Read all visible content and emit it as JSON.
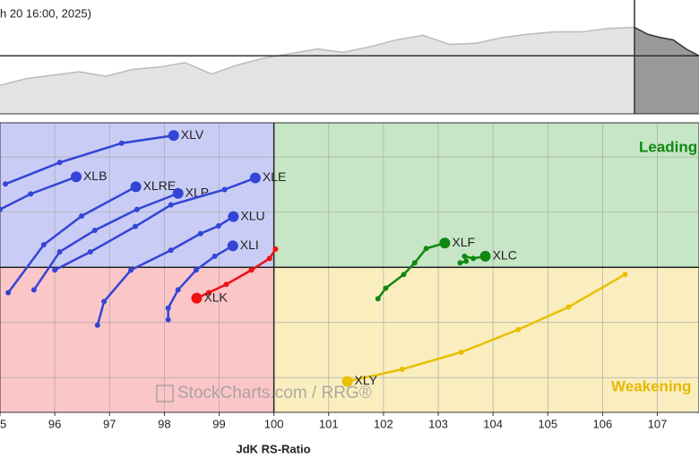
{
  "chart_data": {
    "type": "rrg",
    "caption": "h 20 16:00, 2025)",
    "xlabel": "JdK RS-Ratio",
    "watermark": "StockCharts.com / RRG®",
    "quadrant_labels": {
      "leading": "Leading",
      "weakening": "Weakening"
    },
    "center": [
      100,
      100
    ],
    "xlim": [
      95,
      107.76
    ],
    "ylim": [
      97.37,
      102.62
    ],
    "xticks": [
      95,
      96,
      97,
      98,
      99,
      100,
      101,
      102,
      103,
      104,
      105,
      106,
      107
    ],
    "yticks": [
      98,
      99,
      100,
      101,
      102
    ],
    "grid": true,
    "top_panel": {
      "ylim": [
        0,
        100
      ],
      "reference": 51,
      "values": [
        25,
        31,
        34,
        37,
        33,
        39,
        41,
        45,
        35,
        43,
        49,
        53,
        57,
        54,
        59,
        65,
        69,
        61,
        62,
        67,
        70,
        72,
        72,
        75,
        76
      ],
      "forecast": [
        76,
        70,
        67,
        65,
        57,
        51
      ]
    },
    "series": [
      {
        "name": "XLV",
        "color": "#3344d6",
        "x": [
          95.1,
          96.09,
          97.22,
          98.17
        ],
        "y": [
          101.51,
          101.9,
          102.25,
          102.39
        ]
      },
      {
        "name": "XLB",
        "color": "#3344d6",
        "x": [
          95.0,
          95.56,
          96.39
        ],
        "y": [
          101.05,
          101.33,
          101.64
        ]
      },
      {
        "name": "XLRE",
        "color": "#3344d6",
        "x": [
          95.15,
          95.8,
          96.49,
          97.48
        ],
        "y": [
          99.54,
          100.41,
          100.93,
          101.46
        ]
      },
      {
        "name": "XLP",
        "color": "#3344d6",
        "x": [
          95.62,
          96.09,
          96.73,
          97.5,
          98.25
        ],
        "y": [
          99.59,
          100.28,
          100.67,
          101.05,
          101.34
        ]
      },
      {
        "name": "XLE",
        "color": "#3344d6",
        "x": [
          96.0,
          96.65,
          97.47,
          98.12,
          99.1,
          99.66
        ],
        "y": [
          99.95,
          100.28,
          100.74,
          101.13,
          101.41,
          101.62
        ]
      },
      {
        "name": "XLU",
        "color": "#3344d6",
        "x": [
          96.78,
          96.9,
          97.39,
          98.12,
          98.66,
          98.99,
          99.26
        ],
        "y": [
          98.95,
          99.38,
          99.95,
          100.31,
          100.61,
          100.75,
          100.92
        ]
      },
      {
        "name": "XLI",
        "color": "#3344d6",
        "x": [
          98.07,
          98.07,
          98.25,
          98.58,
          98.92,
          99.25
        ],
        "y": [
          99.05,
          99.26,
          99.59,
          99.95,
          100.2,
          100.39
        ]
      },
      {
        "name": "XLK",
        "color": "#ee1111",
        "x": [
          100.03,
          99.92,
          99.59,
          99.13,
          98.81,
          98.59
        ],
        "y": [
          100.33,
          100.16,
          99.95,
          99.69,
          99.54,
          99.44
        ]
      },
      {
        "name": "XLF",
        "color": "#118811",
        "x": [
          101.9,
          102.04,
          102.37,
          102.57,
          102.78,
          103.12
        ],
        "y": [
          99.43,
          99.62,
          99.87,
          100.08,
          100.34,
          100.44
        ]
      },
      {
        "name": "XLC",
        "color": "#118811",
        "x": [
          103.4,
          103.51,
          103.48,
          103.64,
          103.86
        ],
        "y": [
          100.08,
          100.11,
          100.2,
          100.16,
          100.2
        ]
      },
      {
        "name": "XLY",
        "color": "#e8c000",
        "x": [
          106.41,
          105.38,
          104.46,
          103.42,
          102.34,
          101.34
        ],
        "y": [
          99.87,
          99.28,
          98.87,
          98.46,
          98.15,
          97.93
        ]
      }
    ]
  }
}
